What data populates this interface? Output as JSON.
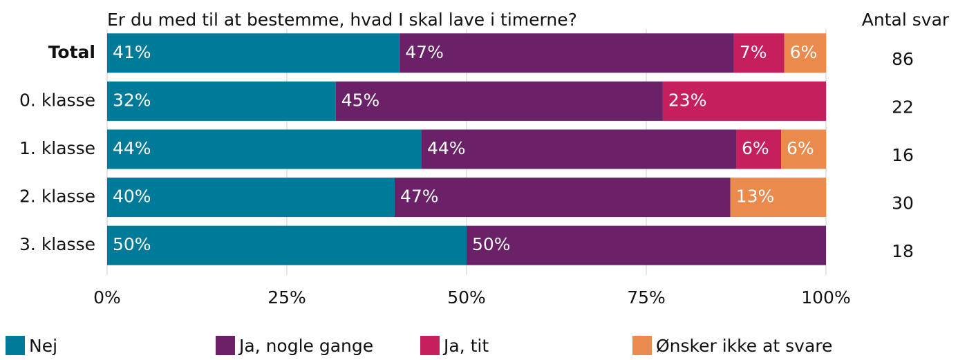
{
  "chart_data": {
    "type": "bar",
    "orientation": "horizontal",
    "stacked": true,
    "title": "Er du med til at bestemme, hvad I skal lave i timerne?",
    "categories": [
      "Total",
      "0. klasse",
      "1. klasse",
      "2. klasse",
      "3. klasse"
    ],
    "series": [
      {
        "name": "Nej",
        "color": "#007a99",
        "values": [
          40.7,
          31.8,
          43.75,
          40,
          50
        ],
        "value_labels": [
          "41%",
          "32%",
          "44%",
          "40%",
          "50%"
        ]
      },
      {
        "name": "Ja, nogle gange",
        "color": "#6a2168",
        "values": [
          46.5,
          45.5,
          43.75,
          46.7,
          50
        ],
        "value_labels": [
          "47%",
          "45%",
          "44%",
          "47%",
          "50%"
        ]
      },
      {
        "name": "Ja, tit",
        "color": "#c51f5d",
        "values": [
          7.0,
          22.7,
          6.25,
          null,
          null
        ],
        "value_labels": [
          "7%",
          "23%",
          "6%",
          null,
          null
        ]
      },
      {
        "name": "Ønsker ikke at svare",
        "color": "#ea8a4c",
        "values": [
          5.8,
          null,
          6.25,
          13.3,
          null
        ],
        "value_labels": [
          "6%",
          null,
          "6%",
          "13%",
          null
        ]
      }
    ],
    "count_title": "Antal svar",
    "counts": [
      86,
      22,
      16,
      30,
      18
    ],
    "xlim": [
      0,
      100
    ],
    "xticks": [
      {
        "value": 0,
        "label": "0%"
      },
      {
        "value": 25,
        "label": "25%"
      },
      {
        "value": 50,
        "label": "50%"
      },
      {
        "value": 75,
        "label": "75%"
      },
      {
        "value": 100,
        "label": "100%"
      }
    ],
    "grid": true
  }
}
